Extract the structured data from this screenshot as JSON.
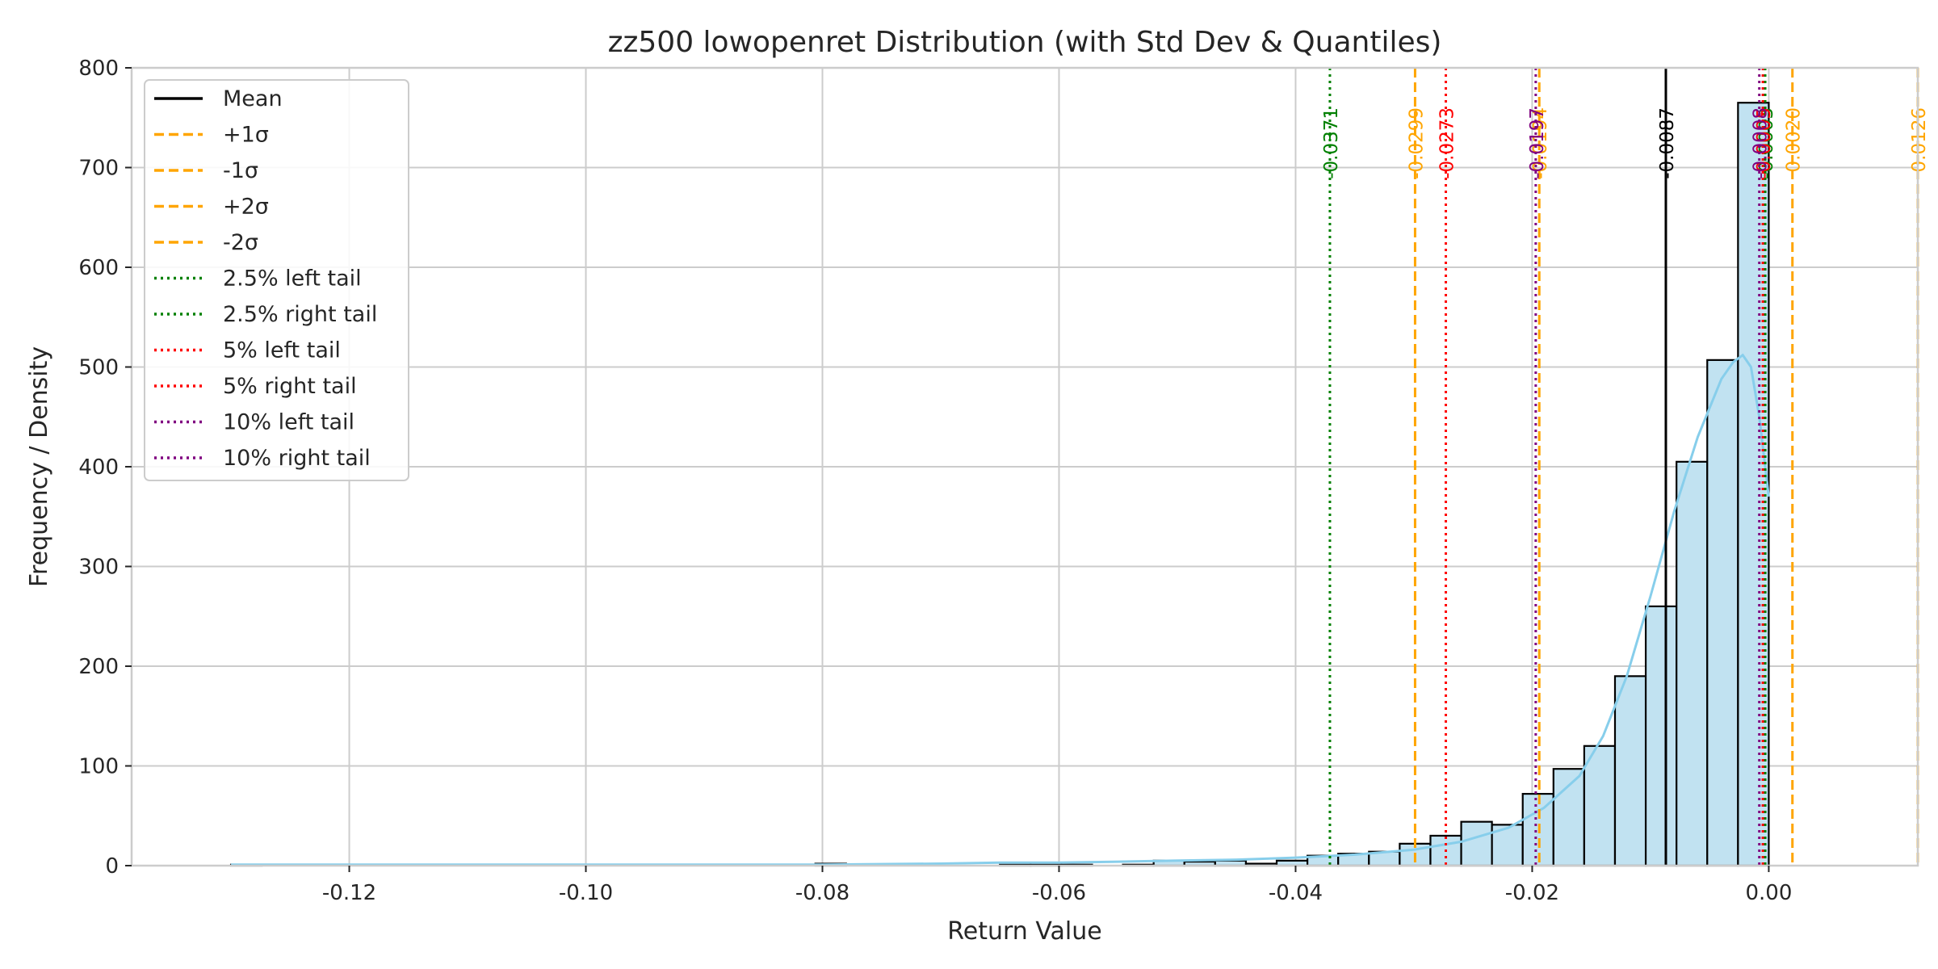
{
  "chart_data": {
    "type": "histogram",
    "title": "zz500 lowopenret Distribution (with Std Dev & Quantiles)",
    "xlabel": "Return Value",
    "ylabel": "Frequency / Density",
    "xlim": [
      -0.1384,
      0.0126
    ],
    "ylim": [
      0,
      800
    ],
    "xticks": [
      -0.12,
      -0.1,
      -0.08,
      -0.06,
      -0.04,
      -0.02,
      0.0
    ],
    "xtick_labels": [
      "-0.12",
      "-0.10",
      "-0.08",
      "-0.06",
      "-0.04",
      "-0.02",
      "0.00"
    ],
    "yticks": [
      0,
      100,
      200,
      300,
      400,
      500,
      600,
      700,
      800
    ],
    "ytick_labels": [
      "0",
      "100",
      "200",
      "300",
      "400",
      "500",
      "600",
      "700",
      "800"
    ],
    "grid": true,
    "bar_fill": "#c1e2f1",
    "bar_edge": "#000000",
    "kde_color": "#87ceeb",
    "bin_edges": [
      -0.13,
      -0.1274,
      -0.1248,
      -0.1222,
      -0.1196,
      -0.117,
      -0.1144,
      -0.1118,
      -0.1092,
      -0.1066,
      -0.104,
      -0.1014,
      -0.0988,
      -0.0962,
      -0.0936,
      -0.091,
      -0.0884,
      -0.0858,
      -0.0832,
      -0.0806,
      -0.078,
      -0.0754,
      -0.0728,
      -0.0702,
      -0.0676,
      -0.065,
      -0.0624,
      -0.0598,
      -0.0572,
      -0.0546,
      -0.052,
      -0.0494,
      -0.0468,
      -0.0442,
      -0.0416,
      -0.039,
      -0.0364,
      -0.0338,
      -0.0312,
      -0.0286,
      -0.026,
      -0.0234,
      -0.0208,
      -0.0182,
      -0.0156,
      -0.013,
      -0.0104,
      -0.0078,
      -0.0052,
      -0.0026,
      0.0
    ],
    "counts": [
      1,
      0,
      0,
      0,
      0,
      0,
      0,
      0,
      0,
      0,
      0,
      0,
      0,
      0,
      0,
      0,
      0,
      0,
      0,
      2,
      0,
      0,
      0,
      0,
      0,
      1,
      1,
      1,
      0,
      1,
      5,
      4,
      5,
      2,
      5,
      10,
      12,
      14,
      22,
      30,
      44,
      41,
      72,
      97,
      120,
      190,
      260,
      405,
      507,
      765
    ],
    "kde": {
      "x": [
        -0.13,
        -0.12,
        -0.11,
        -0.1,
        -0.09,
        -0.08,
        -0.07,
        -0.065,
        -0.06,
        -0.055,
        -0.05,
        -0.045,
        -0.04,
        -0.035,
        -0.03,
        -0.026,
        -0.022,
        -0.019,
        -0.016,
        -0.014,
        -0.012,
        -0.01,
        -0.008,
        -0.006,
        -0.004,
        -0.003,
        -0.0022,
        -0.0015,
        -0.0008,
        0.0
      ],
      "y": [
        1,
        1,
        1,
        1,
        1,
        1,
        2,
        3,
        3,
        4,
        5,
        6,
        8,
        11,
        16,
        24,
        38,
        58,
        90,
        130,
        190,
        270,
        355,
        430,
        488,
        505,
        512,
        500,
        450,
        370
      ]
    },
    "reference_lines": [
      {
        "name": "Mean",
        "value": -0.0087,
        "label": "-0.0087",
        "color": "#000000",
        "style": "solid"
      },
      {
        "name": "+1σ",
        "value": 0.002,
        "label": "0.0020",
        "color": "#ffa500",
        "style": "dashed"
      },
      {
        "name": "-1σ",
        "value": -0.0194,
        "label": "-0.0194",
        "color": "#ffa500",
        "style": "dashed"
      },
      {
        "name": "+2σ",
        "value": 0.0126,
        "label": "0.0126",
        "color": "#ffa500",
        "style": "dashed"
      },
      {
        "name": "-2σ",
        "value": -0.0299,
        "label": "-0.0299",
        "color": "#ffa500",
        "style": "dashed"
      },
      {
        "name": "2.5% left tail",
        "value": -0.0371,
        "label": "-0.0371",
        "color": "#008000",
        "style": "dotted"
      },
      {
        "name": "2.5% right tail",
        "value": -0.0003,
        "label": "-0.0003",
        "color": "#008000",
        "style": "dotted"
      },
      {
        "name": "5% left tail",
        "value": -0.0273,
        "label": "-0.0273",
        "color": "#ff0000",
        "style": "dotted"
      },
      {
        "name": "5% right tail",
        "value": -0.0005,
        "label": "-0.0005",
        "color": "#ff0000",
        "style": "dotted"
      },
      {
        "name": "10% left tail",
        "value": -0.0197,
        "label": "-0.0197",
        "color": "#800080",
        "style": "dotted"
      },
      {
        "name": "10% right tail",
        "value": -0.0008,
        "label": "-0.0008",
        "color": "#800080",
        "style": "dotted"
      }
    ],
    "legend_position": "top-left",
    "legend": [
      {
        "label": "Mean",
        "color": "#000000",
        "style": "solid"
      },
      {
        "label": "+1σ",
        "color": "#ffa500",
        "style": "dashed"
      },
      {
        "label": "-1σ",
        "color": "#ffa500",
        "style": "dashed"
      },
      {
        "label": "+2σ",
        "color": "#ffa500",
        "style": "dashed"
      },
      {
        "label": "-2σ",
        "color": "#ffa500",
        "style": "dashed"
      },
      {
        "label": "2.5% left tail",
        "color": "#008000",
        "style": "dotted"
      },
      {
        "label": "2.5% right tail",
        "color": "#008000",
        "style": "dotted"
      },
      {
        "label": "5% left tail",
        "color": "#ff0000",
        "style": "dotted"
      },
      {
        "label": "5% right tail",
        "color": "#ff0000",
        "style": "dotted"
      },
      {
        "label": "10% left tail",
        "color": "#800080",
        "style": "dotted"
      },
      {
        "label": "10% right tail",
        "color": "#800080",
        "style": "dotted"
      }
    ]
  }
}
